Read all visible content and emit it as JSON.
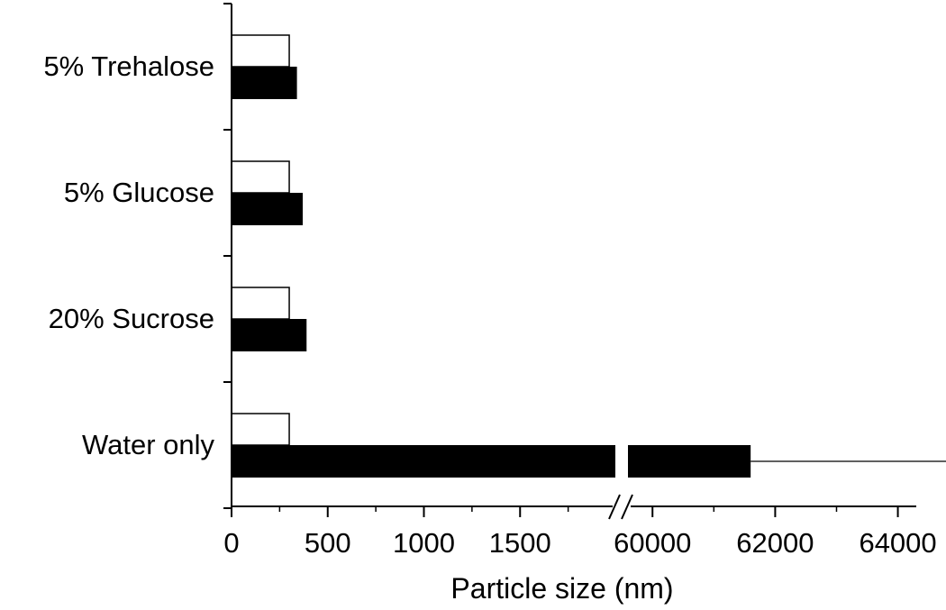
{
  "chart_data": {
    "type": "bar",
    "orientation": "horizontal",
    "xlabel": "Particle size (nm)",
    "ylabel": "",
    "title": "",
    "categories": [
      "5% Trehalose",
      "5% Glucose",
      "20% Sucrose",
      "Water only"
    ],
    "x_axis_break": {
      "segment1_range": [
        0,
        2000
      ],
      "segment2_range": [
        59600,
        64300
      ]
    },
    "xticks_segment1": [
      0,
      500,
      1000,
      1500
    ],
    "xticks_segment2": [
      60000,
      62000,
      64000
    ],
    "series": [
      {
        "style": "outline",
        "color": "#ffffff",
        "values": [
          300,
          300,
          300,
          300
        ]
      },
      {
        "style": "filled",
        "color": "#000000",
        "values": [
          340,
          370,
          390,
          61600
        ],
        "errors": [
          0,
          0,
          0,
          4300
        ]
      }
    ],
    "grid": false,
    "legend": "none"
  }
}
